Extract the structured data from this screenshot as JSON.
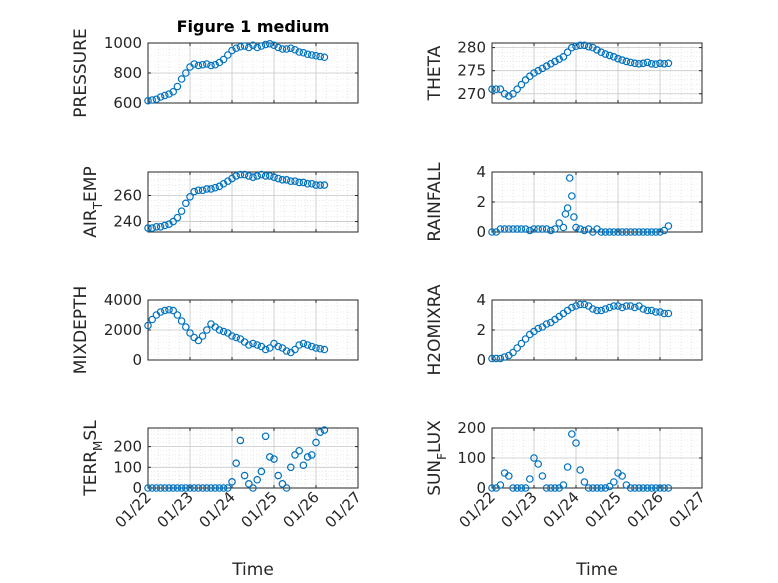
{
  "figure": {
    "title": "Figure 1 medium",
    "marker_color": "#0072bd",
    "axes_color": "#262626",
    "grid_color": "#cfcfcf"
  },
  "chart_data": [
    {
      "type": "scatter",
      "title": "Figure 1 medium",
      "ylabel": "PRESSURE",
      "ylabel_sub": "",
      "ylabel_tail": "",
      "xlabel": "",
      "xlim": [
        0,
        5
      ],
      "ylim": [
        600,
        1000
      ],
      "yticks": [
        600,
        800,
        1000
      ],
      "xticks": [
        0,
        1,
        2,
        3,
        4,
        5
      ],
      "xtick_labels": [],
      "grid": true,
      "x": [
        0.0,
        0.1,
        0.2,
        0.3,
        0.4,
        0.5,
        0.6,
        0.7,
        0.8,
        0.9,
        1.0,
        1.1,
        1.2,
        1.3,
        1.4,
        1.5,
        1.6,
        1.7,
        1.8,
        1.9,
        2.0,
        2.1,
        2.2,
        2.3,
        2.4,
        2.5,
        2.6,
        2.7,
        2.8,
        2.9,
        3.0,
        3.1,
        3.2,
        3.3,
        3.4,
        3.5,
        3.6,
        3.7,
        3.8,
        3.9,
        4.0,
        4.1,
        4.2
      ],
      "y": [
        615,
        620,
        625,
        640,
        650,
        660,
        675,
        710,
        760,
        800,
        840,
        860,
        850,
        855,
        860,
        850,
        855,
        870,
        890,
        920,
        950,
        965,
        975,
        980,
        970,
        985,
        970,
        980,
        990,
        995,
        985,
        970,
        960,
        960,
        965,
        955,
        940,
        935,
        925,
        920,
        915,
        910,
        905
      ]
    },
    {
      "type": "scatter",
      "title": "",
      "ylabel": "THETA",
      "ylabel_sub": "",
      "ylabel_tail": "",
      "xlabel": "",
      "xlim": [
        0,
        5
      ],
      "ylim": [
        268,
        281
      ],
      "yticks": [
        270,
        275,
        280
      ],
      "xticks": [
        0,
        1,
        2,
        3,
        4,
        5
      ],
      "xtick_labels": [],
      "grid": true,
      "x": [
        0.0,
        0.1,
        0.2,
        0.3,
        0.4,
        0.5,
        0.6,
        0.7,
        0.8,
        0.9,
        1.0,
        1.1,
        1.2,
        1.3,
        1.4,
        1.5,
        1.6,
        1.7,
        1.8,
        1.9,
        2.0,
        2.1,
        2.2,
        2.3,
        2.4,
        2.5,
        2.6,
        2.7,
        2.8,
        2.9,
        3.0,
        3.1,
        3.2,
        3.3,
        3.4,
        3.5,
        3.6,
        3.7,
        3.8,
        3.9,
        4.0,
        4.1,
        4.2
      ],
      "y": [
        271,
        271,
        271,
        270,
        269.5,
        270,
        271,
        272,
        273,
        273.8,
        274.5,
        275,
        275.5,
        276,
        276.5,
        277,
        277.5,
        278,
        279,
        280,
        280.3,
        280.5,
        280.5,
        280.2,
        280,
        279.5,
        279,
        278.6,
        278.3,
        278,
        277.6,
        277.3,
        277,
        276.8,
        276.6,
        276.5,
        276.6,
        276.8,
        276.5,
        276.4,
        276.6,
        276.5,
        276.6
      ]
    },
    {
      "type": "scatter",
      "title": "",
      "ylabel": "AIR",
      "ylabel_sub": "T",
      "ylabel_tail": "EMP",
      "xlabel": "",
      "xlim": [
        0,
        5
      ],
      "ylim": [
        232,
        278
      ],
      "yticks": [
        240,
        260
      ],
      "xticks": [
        0,
        1,
        2,
        3,
        4,
        5
      ],
      "xtick_labels": [],
      "grid": true,
      "x": [
        0.0,
        0.1,
        0.2,
        0.3,
        0.4,
        0.5,
        0.6,
        0.7,
        0.8,
        0.9,
        1.0,
        1.1,
        1.2,
        1.3,
        1.4,
        1.5,
        1.6,
        1.7,
        1.8,
        1.9,
        2.0,
        2.1,
        2.2,
        2.3,
        2.4,
        2.5,
        2.6,
        2.7,
        2.8,
        2.9,
        3.0,
        3.1,
        3.2,
        3.3,
        3.4,
        3.5,
        3.6,
        3.7,
        3.8,
        3.9,
        4.0,
        4.1,
        4.2
      ],
      "y": [
        235,
        235,
        236,
        236,
        237,
        238,
        240,
        243,
        248,
        254,
        259,
        263,
        264,
        264,
        265,
        265,
        266,
        267,
        269,
        271,
        273,
        275,
        276,
        276,
        275,
        274,
        275,
        276,
        275,
        275,
        274,
        273,
        272,
        272,
        271,
        271,
        270,
        270,
        269,
        269,
        268,
        268,
        268
      ]
    },
    {
      "type": "scatter",
      "title": "",
      "ylabel": "RAINFALL",
      "ylabel_sub": "",
      "ylabel_tail": "",
      "xlabel": "",
      "xlim": [
        0,
        5
      ],
      "ylim": [
        0,
        4
      ],
      "yticks": [
        0,
        2,
        4
      ],
      "xticks": [
        0,
        1,
        2,
        3,
        4,
        5
      ],
      "xtick_labels": [],
      "grid": true,
      "x": [
        0.0,
        0.1,
        0.2,
        0.3,
        0.4,
        0.5,
        0.6,
        0.7,
        0.8,
        0.9,
        1.0,
        1.1,
        1.2,
        1.3,
        1.4,
        1.5,
        1.6,
        1.7,
        1.75,
        1.8,
        1.85,
        1.9,
        1.95,
        2.0,
        2.1,
        2.2,
        2.3,
        2.4,
        2.5,
        2.6,
        2.7,
        2.8,
        2.9,
        3.0,
        3.1,
        3.2,
        3.3,
        3.4,
        3.5,
        3.6,
        3.7,
        3.8,
        3.9,
        4.0,
        4.1,
        4.2
      ],
      "y": [
        0,
        0,
        0.2,
        0.2,
        0.2,
        0.2,
        0.2,
        0.2,
        0.2,
        0.1,
        0.2,
        0.2,
        0.2,
        0.2,
        0.1,
        0.2,
        0.6,
        0.3,
        1.2,
        1.6,
        3.6,
        2.4,
        1.0,
        0.3,
        0.2,
        0.1,
        0.2,
        0,
        0.2,
        0,
        0,
        0,
        0,
        0,
        0,
        0,
        0,
        0,
        0,
        0,
        0,
        0,
        0,
        0,
        0.1,
        0.4
      ]
    },
    {
      "type": "scatter",
      "title": "",
      "ylabel": "MIXDEPTH",
      "ylabel_sub": "",
      "ylabel_tail": "",
      "xlabel": "",
      "xlim": [
        0,
        5
      ],
      "ylim": [
        0,
        4000
      ],
      "yticks": [
        0,
        2000,
        4000
      ],
      "xticks": [
        0,
        1,
        2,
        3,
        4,
        5
      ],
      "xtick_labels": [],
      "grid": true,
      "x": [
        0.0,
        0.1,
        0.2,
        0.3,
        0.4,
        0.5,
        0.6,
        0.7,
        0.8,
        0.9,
        1.0,
        1.1,
        1.2,
        1.3,
        1.4,
        1.5,
        1.6,
        1.7,
        1.8,
        1.9,
        2.0,
        2.1,
        2.2,
        2.3,
        2.4,
        2.5,
        2.6,
        2.7,
        2.8,
        2.9,
        3.0,
        3.1,
        3.2,
        3.3,
        3.4,
        3.5,
        3.6,
        3.7,
        3.8,
        3.9,
        4.0,
        4.1,
        4.2
      ],
      "y": [
        2300,
        2700,
        3000,
        3200,
        3300,
        3350,
        3300,
        3000,
        2600,
        2200,
        1800,
        1500,
        1300,
        1600,
        2000,
        2400,
        2200,
        2000,
        1900,
        1800,
        1600,
        1500,
        1400,
        1200,
        1000,
        1100,
        1000,
        900,
        700,
        800,
        1100,
        900,
        800,
        600,
        500,
        700,
        1000,
        1100,
        1000,
        900,
        800,
        750,
        700
      ]
    },
    {
      "type": "scatter",
      "title": "",
      "ylabel": "H2OMIXRA",
      "ylabel_sub": "",
      "ylabel_tail": "",
      "xlabel": "",
      "xlim": [
        0,
        5
      ],
      "ylim": [
        0,
        4
      ],
      "yticks": [
        0,
        2,
        4
      ],
      "xticks": [
        0,
        1,
        2,
        3,
        4,
        5
      ],
      "xtick_labels": [],
      "grid": true,
      "x": [
        0.0,
        0.1,
        0.2,
        0.3,
        0.4,
        0.5,
        0.6,
        0.7,
        0.8,
        0.9,
        1.0,
        1.1,
        1.2,
        1.3,
        1.4,
        1.5,
        1.6,
        1.7,
        1.8,
        1.9,
        2.0,
        2.1,
        2.2,
        2.3,
        2.4,
        2.5,
        2.6,
        2.7,
        2.8,
        2.9,
        3.0,
        3.1,
        3.2,
        3.3,
        3.4,
        3.5,
        3.6,
        3.7,
        3.8,
        3.9,
        4.0,
        4.1,
        4.2
      ],
      "y": [
        0.1,
        0.1,
        0.1,
        0.2,
        0.3,
        0.5,
        0.8,
        1.1,
        1.4,
        1.7,
        1.9,
        2.1,
        2.2,
        2.4,
        2.5,
        2.7,
        2.9,
        3.1,
        3.3,
        3.5,
        3.6,
        3.7,
        3.7,
        3.6,
        3.4,
        3.3,
        3.3,
        3.4,
        3.5,
        3.6,
        3.6,
        3.5,
        3.6,
        3.6,
        3.5,
        3.6,
        3.4,
        3.3,
        3.3,
        3.2,
        3.2,
        3.1,
        3.1
      ]
    },
    {
      "type": "scatter",
      "title": "",
      "ylabel": "TERR",
      "ylabel_sub": "M",
      "ylabel_tail": "SL",
      "xlabel": "Time",
      "xlim": [
        0,
        5
      ],
      "ylim": [
        0,
        290
      ],
      "yticks": [
        0,
        100,
        200
      ],
      "xticks": [
        0,
        1,
        2,
        3,
        4,
        5
      ],
      "xtick_labels": [
        "01/22",
        "01/23",
        "01/24",
        "01/25",
        "01/26",
        "01/27"
      ],
      "grid": true,
      "x": [
        0.0,
        0.1,
        0.2,
        0.3,
        0.4,
        0.5,
        0.6,
        0.7,
        0.8,
        0.9,
        1.0,
        1.1,
        1.2,
        1.3,
        1.4,
        1.5,
        1.6,
        1.7,
        1.8,
        1.9,
        2.0,
        2.1,
        2.2,
        2.3,
        2.4,
        2.5,
        2.6,
        2.7,
        2.8,
        2.9,
        3.0,
        3.1,
        3.2,
        3.3,
        3.4,
        3.5,
        3.6,
        3.7,
        3.8,
        3.9,
        4.0,
        4.1,
        4.2
      ],
      "y": [
        0,
        0,
        0,
        0,
        0,
        0,
        0,
        0,
        0,
        0,
        0,
        0,
        0,
        0,
        0,
        0,
        0,
        0,
        0,
        0,
        30,
        120,
        230,
        60,
        20,
        0,
        40,
        80,
        250,
        150,
        140,
        60,
        20,
        0,
        100,
        160,
        180,
        110,
        150,
        160,
        220,
        270,
        280
      ]
    },
    {
      "type": "scatter",
      "title": "",
      "ylabel": "SUN",
      "ylabel_sub": "F",
      "ylabel_tail": "LUX",
      "xlabel": "Time",
      "xlim": [
        0,
        5
      ],
      "ylim": [
        0,
        200
      ],
      "yticks": [
        0,
        100,
        200
      ],
      "xticks": [
        0,
        1,
        2,
        3,
        4,
        5
      ],
      "xtick_labels": [
        "01/22",
        "01/23",
        "01/24",
        "01/25",
        "01/26",
        "01/27"
      ],
      "grid": true,
      "x": [
        0.0,
        0.1,
        0.2,
        0.3,
        0.4,
        0.5,
        0.6,
        0.7,
        0.8,
        0.9,
        1.0,
        1.1,
        1.2,
        1.3,
        1.4,
        1.5,
        1.6,
        1.7,
        1.8,
        1.9,
        2.0,
        2.1,
        2.2,
        2.3,
        2.4,
        2.5,
        2.6,
        2.7,
        2.8,
        2.9,
        3.0,
        3.1,
        3.2,
        3.3,
        3.4,
        3.5,
        3.6,
        3.7,
        3.8,
        3.9,
        4.0,
        4.1,
        4.2
      ],
      "y": [
        0,
        0,
        10,
        50,
        40,
        0,
        0,
        0,
        0,
        30,
        100,
        80,
        40,
        0,
        0,
        0,
        0,
        10,
        70,
        180,
        150,
        60,
        20,
        0,
        0,
        0,
        0,
        0,
        5,
        20,
        50,
        40,
        10,
        0,
        0,
        0,
        0,
        0,
        0,
        0,
        0,
        0,
        0
      ]
    }
  ]
}
